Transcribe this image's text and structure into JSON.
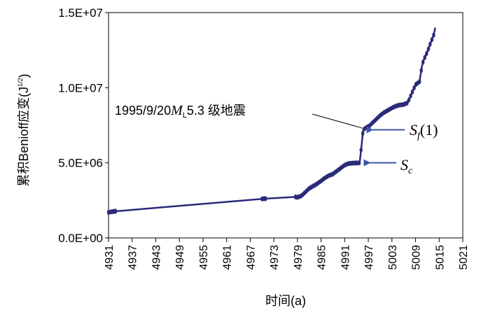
{
  "chart_data": {
    "type": "line",
    "title": "",
    "xlabel": "时间(a)",
    "ylabel": "累积Benioff应变(J",
    "ylabel_sup": "1/2",
    "ylabel_close": ")",
    "xlim": [
      4931,
      5021
    ],
    "ylim": [
      0,
      15000000
    ],
    "x_ticks": [
      4931,
      4937,
      4943,
      4949,
      4955,
      4961,
      4967,
      4973,
      4979,
      4985,
      4991,
      4997,
      5003,
      5009,
      5015,
      5021
    ],
    "x_tick_labels": [
      "4931",
      "4937",
      "4943",
      "4949",
      "4955",
      "4961",
      "4967",
      "4973",
      "4979",
      "4985",
      "4991",
      "4997",
      "5003",
      "5009",
      "5015",
      "5021"
    ],
    "y_ticks": [
      0,
      5000000,
      10000000,
      15000000
    ],
    "y_tick_labels": [
      "0.0E+00",
      "5.0E+06",
      "1.0E+07",
      "1.5E+07"
    ],
    "grid": false,
    "series": [
      {
        "color": "#2a2a7a",
        "points": [
          [
            4931.0,
            1700000
          ],
          [
            4932.2,
            1760000
          ],
          [
            4970.0,
            2600000
          ],
          [
            4978.5,
            2730000
          ],
          [
            4979.0,
            2700000
          ],
          [
            4980.0,
            2800000
          ],
          [
            4981.0,
            3050000
          ],
          [
            4982.0,
            3300000
          ],
          [
            4983.0,
            3450000
          ],
          [
            4984.0,
            3600000
          ],
          [
            4985.0,
            3800000
          ],
          [
            4986.0,
            4000000
          ],
          [
            4987.0,
            4150000
          ],
          [
            4988.0,
            4250000
          ],
          [
            4989.0,
            4450000
          ],
          [
            4990.0,
            4650000
          ],
          [
            4991.0,
            4850000
          ],
          [
            4992.0,
            4950000
          ],
          [
            4993.0,
            4980000
          ],
          [
            4994.0,
            4990000
          ],
          [
            4994.8,
            5000000
          ],
          [
            4995.7,
            7200000
          ],
          [
            4996.5,
            7350000
          ],
          [
            4997.5,
            7500000
          ],
          [
            4998.0,
            7650000
          ],
          [
            4999.0,
            7900000
          ],
          [
            5000.0,
            8150000
          ],
          [
            5001.0,
            8350000
          ],
          [
            5002.0,
            8500000
          ],
          [
            5003.0,
            8650000
          ],
          [
            5004.0,
            8780000
          ],
          [
            5005.0,
            8850000
          ],
          [
            5006.0,
            8880000
          ],
          [
            5007.0,
            9000000
          ],
          [
            5008.0,
            9600000
          ],
          [
            5009.0,
            10200000
          ],
          [
            5010.0,
            10400000
          ],
          [
            5010.6,
            11400000
          ],
          [
            5011.0,
            11800000
          ],
          [
            5012.0,
            12400000
          ],
          [
            5013.0,
            13100000
          ],
          [
            5013.6,
            13500000
          ],
          [
            5014.0,
            14000000
          ]
        ]
      }
    ],
    "markers_x_ranges": [
      [
        4931,
        4933
      ],
      [
        4970,
        4971
      ],
      [
        4978.5,
        5014
      ]
    ],
    "annotations": [
      {
        "text_main": "1995/9/20",
        "text_ital": "M",
        "text_sub": "L",
        "text_tail": "5.3 级地震",
        "x": 4995.7,
        "y": 7200000
      },
      {
        "label_main": "S",
        "label_sub": "f",
        "label_tail": "(1)",
        "x": 4996.0,
        "y": 7200000,
        "color": "#3a55a8"
      },
      {
        "label_main": "S",
        "label_sub": "c",
        "label_tail": "",
        "x": 4995.3,
        "y": 5000000,
        "color": "#3a55a8"
      }
    ]
  }
}
